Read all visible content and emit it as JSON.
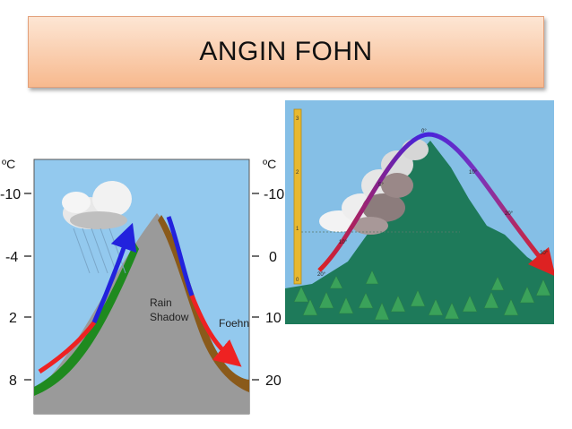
{
  "title": "ANGIN FOHN",
  "left_diagram": {
    "unit_left": "ºC",
    "unit_right": "ºC",
    "left_scale": [
      "-10",
      "-4",
      "2",
      "8"
    ],
    "right_scale": [
      "-10",
      "0",
      "10",
      "20"
    ],
    "rain_shadow_line1": "Rain",
    "rain_shadow_line2": "Shadow",
    "foehn_label": "Foehn",
    "colors": {
      "sky": "#93c9ee",
      "mountain": "#9a9a9a",
      "windward": "#1f8a1f",
      "leeward": "#8a5a1a",
      "rising_arrow": "#2222dd",
      "descending_arrow": "#ee2222"
    }
  },
  "right_diagram": {
    "height_scale": [
      "3",
      "2",
      "1",
      "0"
    ],
    "temps": {
      "base_left": "20°",
      "lower_left": "10°",
      "mid_left": "5°",
      "summit": "0°",
      "upper_right": "10°",
      "mid_right": "20°",
      "base_right": "30°"
    },
    "colors": {
      "sky": "#85bfe6",
      "mountain": "#1e7a5a",
      "ruler": "#e8b830",
      "trees": "#3aa25a"
    }
  }
}
